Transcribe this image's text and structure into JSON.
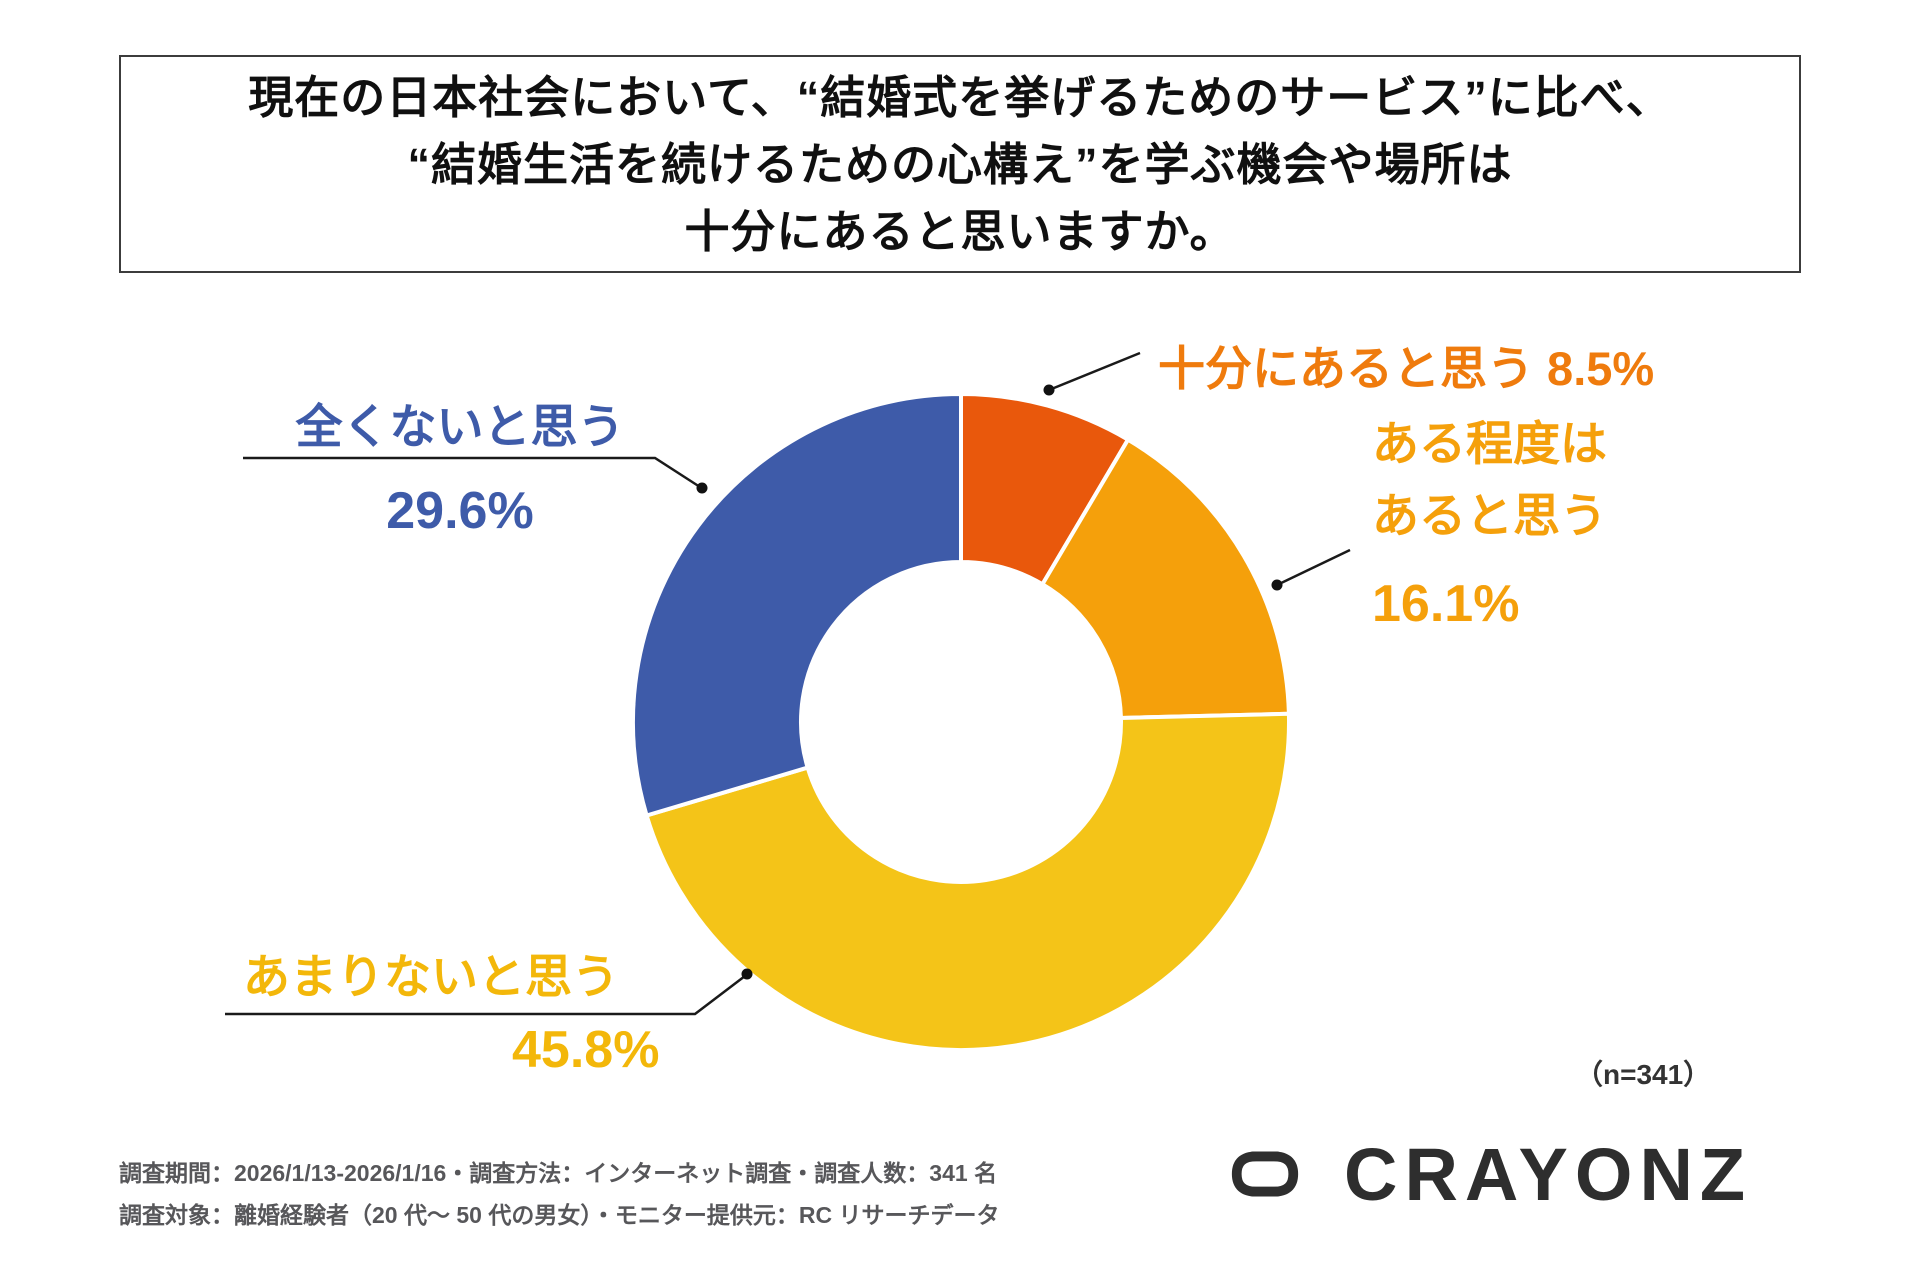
{
  "title": {
    "line1": "現在の日本社会において、“結婚式を挙げるためのサービス”に比べ、",
    "line2": "“結婚生活を続けるための心構え”を学ぶ機会や場所は",
    "line3": "十分にあると思いますか。"
  },
  "chart_data": {
    "type": "pie",
    "subtype": "donut",
    "start_angle_deg": 0,
    "direction": "clockwise",
    "unit": "%",
    "sample_size": 341,
    "sample_note": "（n=341）",
    "segments": [
      {
        "key": "sufficient",
        "label": "十分にあると思う",
        "value": 8.5,
        "color": "#E9580C"
      },
      {
        "key": "somewhat",
        "label": "ある程度はあると思う",
        "value": 16.1,
        "color": "#F5A00B"
      },
      {
        "key": "not_much",
        "label": "あまりないと思う",
        "value": 45.8,
        "color": "#F4C418"
      },
      {
        "key": "none_at_all",
        "label": "全くないと思う",
        "value": 29.6,
        "color": "#3E5BA9"
      }
    ]
  },
  "callouts": {
    "sufficient": {
      "text": "十分にあると思う 8.5%",
      "color": "#EF7B0D"
    },
    "somewhat": {
      "line1": "ある程度は",
      "line2": "あると思う",
      "value": "16.1%",
      "color": "#F5A00B"
    },
    "none_at_all": {
      "label": "全くないと思う",
      "value": "29.6%",
      "color": "#3E5BA9"
    },
    "not_much": {
      "label": "あまりないと思う",
      "value": "45.8%",
      "color": "#F3B70A"
    }
  },
  "note": {
    "sample": "（n=341）"
  },
  "footer": {
    "line1": "調査期間：2026/1/13-2026/1/16・調査方法：インターネット調査・調査人数：341 名",
    "line2": "調査対象：離婚経験者（20 代～ 50 代の男女）・モニター提供元：RC リサーチデータ"
  },
  "logo": {
    "text": "CRAYONZ"
  }
}
